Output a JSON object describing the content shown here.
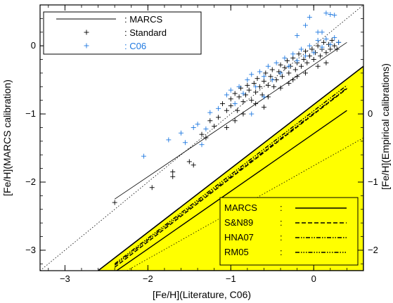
{
  "chart_data": {
    "type": "scatter",
    "xlabel": "[Fe/H](Literature, C06)",
    "ylabel_left": "[Fe/H](MARCS calibration)",
    "ylabel_right": "[Fe/H](Empirical calibrations)",
    "xlim": [
      -3.3,
      0.6
    ],
    "ylim_left": [
      -3.3,
      0.6
    ],
    "ylim_right": [
      -2.4,
      1.5
    ],
    "right_axis_offset": 1.0,
    "x_ticks": [
      -3,
      -2,
      -1,
      0
    ],
    "x_tick_labels": [
      "−3",
      "−2",
      "−1",
      "0"
    ],
    "y_ticks_left": [
      -3,
      -2,
      -1,
      0
    ],
    "y_tick_labels_left": [
      "−3",
      "−2",
      "−1",
      "0"
    ],
    "y_ticks_right": [
      -2,
      -1,
      0
    ],
    "y_tick_labels_right": [
      "−2",
      "−1",
      "0"
    ],
    "grid": false,
    "upper_legend": {
      "placement": "top-left",
      "entries": [
        {
          "label": ": MARCS",
          "style": "solid-line",
          "color": "#000000"
        },
        {
          "label": ": Standard",
          "style": "plus",
          "color": "#000000"
        },
        {
          "label": ": C06",
          "style": "plus",
          "color": "#1e78e0"
        }
      ]
    },
    "lower_legend": {
      "placement": "bottom-right",
      "entries": [
        {
          "label": "MARCS",
          "sep": ":",
          "dash": "solid"
        },
        {
          "label": "S&N89",
          "sep": ":",
          "dash": "dashed"
        },
        {
          "label": "HNA07",
          "sep": ":",
          "dash": "dash-dot-dot"
        },
        {
          "label": "RM05",
          "sep": ":",
          "dash": "dash-dot-dot-dot"
        }
      ]
    },
    "colors": {
      "standard": "#000000",
      "c06": "#1e78e0",
      "region": "#ffff00"
    },
    "shaded_region": {
      "description": "lower-right triangle below one-to-one line",
      "corner_points": [
        [
          -2.6,
          -3.3
        ],
        [
          0.6,
          -0.3
        ],
        [
          0.6,
          -3.3
        ]
      ]
    },
    "one_to_one_dotted": {
      "x": [
        -3.3,
        0.6
      ],
      "y": [
        -3.3,
        0.6
      ]
    },
    "marcs_fit_left": {
      "x": [
        -2.4,
        0.4
      ],
      "y": [
        -2.25,
        0.05
      ]
    },
    "empirical_lines_right_axis": [
      {
        "name": "MARCS",
        "dash": "solid",
        "x": [
          -2.4,
          0.4
        ],
        "y": [
          -2.32,
          0.05
        ]
      },
      {
        "name": "S&N89",
        "dash": "dashed",
        "x": [
          -2.4,
          0.4
        ],
        "y": [
          -2.25,
          0.37
        ]
      },
      {
        "name": "HNA07",
        "dash": "dash-dot-dot",
        "x": [
          -2.4,
          0.4
        ],
        "y": [
          -2.2,
          0.42
        ]
      },
      {
        "name": "RM05",
        "dash": "dash-dot-dot-dot",
        "x": [
          -2.4,
          0.4
        ],
        "y": [
          -2.22,
          0.38
        ]
      }
    ],
    "dotted_one_to_one_right": {
      "x": [
        -2.4,
        0.6
      ],
      "y": [
        -2.4,
        -0.35
      ]
    },
    "series": [
      {
        "name": "Standard",
        "marker": "plus",
        "color": "#000000",
        "points": [
          [
            -2.4,
            -2.3
          ],
          [
            -1.95,
            -2.08
          ],
          [
            -1.7,
            -1.85
          ],
          [
            -1.7,
            -1.92
          ],
          [
            -1.5,
            -1.7
          ],
          [
            -1.45,
            -1.75
          ],
          [
            -1.35,
            -1.3
          ],
          [
            -1.3,
            -1.35
          ],
          [
            -1.25,
            -1.1
          ],
          [
            -1.2,
            -1.18
          ],
          [
            -1.15,
            -1.05
          ],
          [
            -1.1,
            -0.85
          ],
          [
            -1.05,
            -0.95
          ],
          [
            -1.0,
            -0.78
          ],
          [
            -1.0,
            -0.88
          ],
          [
            -0.95,
            -0.7
          ],
          [
            -0.92,
            -0.95
          ],
          [
            -0.9,
            -0.75
          ],
          [
            -0.88,
            -0.62
          ],
          [
            -0.85,
            -0.82
          ],
          [
            -0.82,
            -0.72
          ],
          [
            -0.8,
            -0.58
          ],
          [
            -0.78,
            -0.65
          ],
          [
            -0.75,
            -0.8
          ],
          [
            -0.72,
            -0.55
          ],
          [
            -0.7,
            -0.68
          ],
          [
            -0.68,
            -0.48
          ],
          [
            -0.65,
            -0.6
          ],
          [
            -0.62,
            -0.72
          ],
          [
            -0.6,
            -0.52
          ],
          [
            -0.58,
            -0.4
          ],
          [
            -0.55,
            -0.58
          ],
          [
            -0.52,
            -0.45
          ],
          [
            -0.5,
            -0.35
          ],
          [
            -0.48,
            -0.6
          ],
          [
            -0.45,
            -0.5
          ],
          [
            -0.42,
            -0.38
          ],
          [
            -0.4,
            -0.28
          ],
          [
            -0.38,
            -0.45
          ],
          [
            -0.35,
            -0.32
          ],
          [
            -0.32,
            -0.22
          ],
          [
            -0.3,
            -0.4
          ],
          [
            -0.28,
            -0.3
          ],
          [
            -0.25,
            -0.18
          ],
          [
            -0.22,
            -0.35
          ],
          [
            -0.2,
            -0.25
          ],
          [
            -0.18,
            -0.12
          ],
          [
            -0.15,
            -0.3
          ],
          [
            -0.12,
            -0.2
          ],
          [
            -0.1,
            -0.08
          ],
          [
            -0.08,
            -0.25
          ],
          [
            -0.05,
            -0.15
          ],
          [
            -0.02,
            -0.05
          ],
          [
            0.0,
            -0.2
          ],
          [
            0.02,
            -0.1
          ],
          [
            0.05,
            0.0
          ],
          [
            0.08,
            -0.15
          ],
          [
            0.1,
            -0.05
          ],
          [
            0.12,
            0.05
          ],
          [
            0.15,
            -0.1
          ],
          [
            0.18,
            0.02
          ],
          [
            0.2,
            -0.05
          ],
          [
            0.22,
            0.08
          ],
          [
            0.25,
            0.0
          ],
          [
            0.28,
            -0.05
          ],
          [
            0.3,
            0.05
          ],
          [
            -0.6,
            -0.9
          ],
          [
            -0.7,
            -0.85
          ],
          [
            -0.4,
            -0.62
          ],
          [
            -0.3,
            -0.55
          ],
          [
            -0.2,
            -0.45
          ],
          [
            0.05,
            -0.3
          ],
          [
            -1.05,
            -1.2
          ],
          [
            -0.85,
            -1.0
          ],
          [
            -0.95,
            -1.1
          ],
          [
            -0.55,
            -0.75
          ],
          [
            -0.25,
            -0.5
          ],
          [
            -0.1,
            -0.4
          ],
          [
            0.15,
            -0.25
          ]
        ]
      },
      {
        "name": "C06",
        "marker": "plus",
        "color": "#1e78e0",
        "points": [
          [
            -2.05,
            -1.62
          ],
          [
            -1.75,
            -1.38
          ],
          [
            -1.6,
            -1.28
          ],
          [
            -1.55,
            -1.42
          ],
          [
            -1.45,
            -1.2
          ],
          [
            -1.4,
            -1.15
          ],
          [
            -1.3,
            -1.22
          ],
          [
            -1.25,
            -0.98
          ],
          [
            -1.15,
            -0.92
          ],
          [
            -1.05,
            -0.72
          ],
          [
            -1.0,
            -0.65
          ],
          [
            -0.95,
            -0.85
          ],
          [
            -0.9,
            -0.6
          ],
          [
            -0.85,
            -0.7
          ],
          [
            -0.8,
            -0.5
          ],
          [
            -0.75,
            -0.42
          ],
          [
            -0.7,
            -0.6
          ],
          [
            -0.65,
            -0.38
          ],
          [
            -0.6,
            -0.45
          ],
          [
            -0.55,
            -0.3
          ],
          [
            -0.5,
            -0.5
          ],
          [
            -0.45,
            -0.25
          ],
          [
            -0.4,
            -0.4
          ],
          [
            -0.35,
            -0.18
          ],
          [
            -0.3,
            -0.3
          ],
          [
            -0.25,
            -0.12
          ],
          [
            -0.2,
            -0.22
          ],
          [
            -0.15,
            -0.05
          ],
          [
            -0.1,
            -0.15
          ],
          [
            -0.05,
            0.0
          ],
          [
            0.0,
            -0.1
          ],
          [
            0.05,
            0.08
          ],
          [
            0.1,
            -0.02
          ],
          [
            0.15,
            0.1
          ],
          [
            0.2,
            0.02
          ],
          [
            0.25,
            0.12
          ],
          [
            0.3,
            0.05
          ],
          [
            -0.1,
            0.3
          ],
          [
            -0.05,
            0.42
          ],
          [
            0.15,
            0.48
          ],
          [
            0.2,
            0.46
          ],
          [
            0.25,
            0.45
          ],
          [
            0.1,
            0.2
          ],
          [
            -0.2,
            0.15
          ],
          [
            -1.35,
            -1.45
          ],
          [
            -0.75,
            -1.0
          ],
          [
            -0.6,
            -0.75
          ],
          [
            0.05,
            0.2
          ]
        ]
      }
    ]
  }
}
